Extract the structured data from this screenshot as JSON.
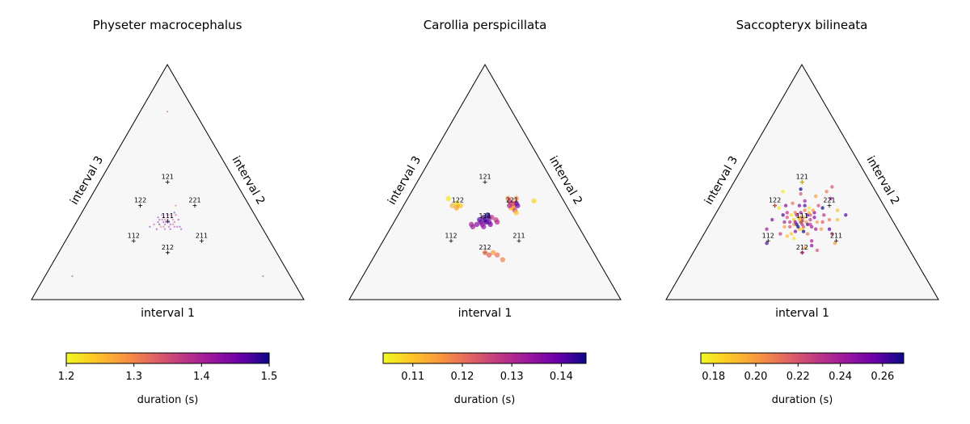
{
  "chart_data": [
    {
      "type": "scatter",
      "title": "Physeter macrocephalus",
      "axis_labels": {
        "bottom": "interval 1",
        "right": "interval 2",
        "left": "interval 3"
      },
      "colorbar": {
        "label": "duration (s)",
        "range": [
          1.2,
          1.5
        ],
        "ticks": [
          "1.2",
          "1.3",
          "1.4",
          "1.5"
        ]
      },
      "reference_patterns": [
        {
          "label": "111",
          "ratios": [
            1,
            1,
            1
          ]
        },
        {
          "label": "121",
          "ratios": [
            1,
            2,
            1
          ]
        },
        {
          "label": "122",
          "ratios": [
            1,
            2,
            2
          ]
        },
        {
          "label": "221",
          "ratios": [
            2,
            2,
            1
          ]
        },
        {
          "label": "112",
          "ratios": [
            1,
            1,
            2
          ]
        },
        {
          "label": "211",
          "ratios": [
            2,
            1,
            1
          ]
        },
        {
          "label": "212",
          "ratios": [
            2,
            1,
            2
          ]
        }
      ],
      "points": [
        [
          0.33,
          0.33,
          0.34,
          1.45
        ],
        [
          0.35,
          0.32,
          0.33,
          1.42
        ],
        [
          0.31,
          0.34,
          0.35,
          1.38
        ],
        [
          0.34,
          0.35,
          0.31,
          1.47
        ],
        [
          0.32,
          0.31,
          0.37,
          1.33
        ],
        [
          0.36,
          0.33,
          0.31,
          1.4
        ],
        [
          0.3,
          0.33,
          0.37,
          1.44
        ],
        [
          0.33,
          0.36,
          0.31,
          1.36
        ],
        [
          0.37,
          0.31,
          0.32,
          1.41
        ],
        [
          0.32,
          0.36,
          0.32,
          1.46
        ],
        [
          0.34,
          0.3,
          0.36,
          1.39
        ],
        [
          0.29,
          0.35,
          0.36,
          1.43
        ],
        [
          0.35,
          0.34,
          0.31,
          1.35
        ],
        [
          0.31,
          0.32,
          0.37,
          1.48
        ],
        [
          0.38,
          0.31,
          0.31,
          1.42
        ],
        [
          0.33,
          0.31,
          0.36,
          1.37
        ],
        [
          0.36,
          0.3,
          0.34,
          1.45
        ],
        [
          0.3,
          0.36,
          0.34,
          1.4
        ],
        [
          0.34,
          0.33,
          0.33,
          1.49
        ],
        [
          0.32,
          0.34,
          0.34,
          1.34
        ],
        [
          0.39,
          0.31,
          0.3,
          1.43
        ],
        [
          0.29,
          0.32,
          0.39,
          1.41
        ],
        [
          0.35,
          0.36,
          0.29,
          1.38
        ],
        [
          0.31,
          0.3,
          0.39,
          1.46
        ],
        [
          0.37,
          0.34,
          0.29,
          1.44
        ],
        [
          0.33,
          0.32,
          0.35,
          1.39
        ],
        [
          0.34,
          0.37,
          0.29,
          1.47
        ],
        [
          0.36,
          0.32,
          0.32,
          1.36
        ],
        [
          0.3,
          0.34,
          0.36,
          1.42
        ],
        [
          0.33,
          0.34,
          0.33,
          1.41
        ],
        [
          0.32,
          0.33,
          0.35,
          1.45
        ],
        [
          0.35,
          0.31,
          0.34,
          1.4
        ],
        [
          0.31,
          0.35,
          0.34,
          1.43
        ],
        [
          0.33,
          0.4,
          0.27,
          1.35
        ],
        [
          0.1,
          0.1,
          0.8,
          1.42
        ],
        [
          0.8,
          0.1,
          0.1,
          1.4
        ],
        [
          0.1,
          0.8,
          0.1,
          1.38
        ],
        [
          0.4,
          0.3,
          0.3,
          1.44
        ],
        [
          0.28,
          0.31,
          0.41,
          1.46
        ]
      ]
    },
    {
      "type": "scatter",
      "title": "Carollia perspicillata",
      "axis_labels": {
        "bottom": "interval 1",
        "right": "interval 2",
        "left": "interval 3"
      },
      "colorbar": {
        "label": "duration (s)",
        "range": [
          0.104,
          0.145
        ],
        "ticks": [
          "0.11",
          "0.12",
          "0.13",
          "0.14"
        ]
      },
      "reference_patterns": [
        {
          "label": "111",
          "ratios": [
            1,
            1,
            1
          ]
        },
        {
          "label": "121",
          "ratios": [
            1,
            2,
            1
          ]
        },
        {
          "label": "122",
          "ratios": [
            1,
            2,
            2
          ]
        },
        {
          "label": "221",
          "ratios": [
            2,
            2,
            1
          ]
        },
        {
          "label": "112",
          "ratios": [
            1,
            1,
            2
          ]
        },
        {
          "label": "211",
          "ratios": [
            2,
            1,
            1
          ]
        },
        {
          "label": "212",
          "ratios": [
            2,
            1,
            2
          ]
        }
      ],
      "points": [
        [
          0.2,
          0.4,
          0.4,
          0.105
        ],
        [
          0.19,
          0.41,
          0.4,
          0.108
        ],
        [
          0.21,
          0.4,
          0.39,
          0.11
        ],
        [
          0.18,
          0.4,
          0.42,
          0.112
        ],
        [
          0.2,
          0.39,
          0.41,
          0.115
        ],
        [
          0.15,
          0.43,
          0.42,
          0.106
        ],
        [
          0.4,
          0.4,
          0.2,
          0.115
        ],
        [
          0.41,
          0.39,
          0.2,
          0.118
        ],
        [
          0.39,
          0.41,
          0.2,
          0.12
        ],
        [
          0.4,
          0.41,
          0.19,
          0.122
        ],
        [
          0.42,
          0.38,
          0.2,
          0.125
        ],
        [
          0.38,
          0.42,
          0.2,
          0.128
        ],
        [
          0.4,
          0.39,
          0.21,
          0.112
        ],
        [
          0.39,
          0.4,
          0.21,
          0.13
        ],
        [
          0.41,
          0.41,
          0.18,
          0.135
        ],
        [
          0.37,
          0.43,
          0.2,
          0.118
        ],
        [
          0.43,
          0.37,
          0.2,
          0.11
        ],
        [
          0.4,
          0.43,
          0.17,
          0.117
        ],
        [
          0.47,
          0.42,
          0.11,
          0.108
        ],
        [
          0.42,
          0.4,
          0.18,
          0.14
        ],
        [
          0.33,
          0.34,
          0.33,
          0.14
        ],
        [
          0.32,
          0.33,
          0.35,
          0.138
        ],
        [
          0.34,
          0.33,
          0.33,
          0.142
        ],
        [
          0.31,
          0.32,
          0.37,
          0.136
        ],
        [
          0.33,
          0.32,
          0.35,
          0.135
        ],
        [
          0.35,
          0.33,
          0.32,
          0.139
        ],
        [
          0.3,
          0.31,
          0.39,
          0.133
        ],
        [
          0.32,
          0.35,
          0.33,
          0.141
        ],
        [
          0.34,
          0.35,
          0.31,
          0.143
        ],
        [
          0.36,
          0.32,
          0.32,
          0.137
        ],
        [
          0.29,
          0.32,
          0.39,
          0.132
        ],
        [
          0.33,
          0.36,
          0.31,
          0.144
        ],
        [
          0.35,
          0.35,
          0.3,
          0.128
        ],
        [
          0.37,
          0.34,
          0.29,
          0.126
        ],
        [
          0.31,
          0.34,
          0.35,
          0.14
        ],
        [
          0.38,
          0.33,
          0.29,
          0.13
        ],
        [
          0.34,
          0.31,
          0.35,
          0.134
        ],
        [
          0.4,
          0.2,
          0.4,
          0.118
        ],
        [
          0.42,
          0.19,
          0.39,
          0.122
        ],
        [
          0.43,
          0.2,
          0.37,
          0.115
        ],
        [
          0.45,
          0.19,
          0.36,
          0.12
        ],
        [
          0.48,
          0.17,
          0.35,
          0.118
        ]
      ]
    },
    {
      "type": "scatter",
      "title": "Saccopteryx bilineata",
      "axis_labels": {
        "bottom": "interval 1",
        "right": "interval 2",
        "left": "interval 3"
      },
      "colorbar": {
        "label": "duration (s)",
        "range": [
          0.174,
          0.27
        ],
        "ticks": [
          "0.18",
          "0.20",
          "0.22",
          "0.24",
          "0.26"
        ]
      },
      "reference_patterns": [
        {
          "label": "111",
          "ratios": [
            1,
            1,
            1
          ]
        },
        {
          "label": "121",
          "ratios": [
            1,
            2,
            1
          ]
        },
        {
          "label": "122",
          "ratios": [
            1,
            2,
            2
          ]
        },
        {
          "label": "221",
          "ratios": [
            2,
            2,
            1
          ]
        },
        {
          "label": "112",
          "ratios": [
            1,
            1,
            2
          ]
        },
        {
          "label": "211",
          "ratios": [
            2,
            1,
            1
          ]
        },
        {
          "label": "212",
          "ratios": [
            2,
            1,
            2
          ]
        }
      ],
      "points": [
        [
          0.33,
          0.34,
          0.33,
          0.22
        ],
        [
          0.31,
          0.35,
          0.34,
          0.18
        ],
        [
          0.35,
          0.33,
          0.32,
          0.2
        ],
        [
          0.3,
          0.36,
          0.34,
          0.24
        ],
        [
          0.36,
          0.32,
          0.32,
          0.26
        ],
        [
          0.32,
          0.38,
          0.3,
          0.21
        ],
        [
          0.34,
          0.3,
          0.36,
          0.19
        ],
        [
          0.29,
          0.33,
          0.38,
          0.23
        ],
        [
          0.37,
          0.35,
          0.28,
          0.25
        ],
        [
          0.33,
          0.31,
          0.36,
          0.27
        ],
        [
          0.31,
          0.32,
          0.37,
          0.2
        ],
        [
          0.35,
          0.36,
          0.29,
          0.22
        ],
        [
          0.28,
          0.36,
          0.36,
          0.18
        ],
        [
          0.38,
          0.31,
          0.31,
          0.24
        ],
        [
          0.32,
          0.35,
          0.33,
          0.21
        ],
        [
          0.34,
          0.36,
          0.3,
          0.26
        ],
        [
          0.3,
          0.34,
          0.36,
          0.19
        ],
        [
          0.36,
          0.34,
          0.3,
          0.23
        ],
        [
          0.33,
          0.29,
          0.38,
          0.25
        ],
        [
          0.27,
          0.35,
          0.38,
          0.22
        ],
        [
          0.39,
          0.33,
          0.28,
          0.2
        ],
        [
          0.31,
          0.37,
          0.32,
          0.24
        ],
        [
          0.35,
          0.3,
          0.35,
          0.18
        ],
        [
          0.33,
          0.33,
          0.34,
          0.26
        ],
        [
          0.29,
          0.37,
          0.34,
          0.21
        ],
        [
          0.37,
          0.32,
          0.31,
          0.23
        ],
        [
          0.32,
          0.32,
          0.36,
          0.27
        ],
        [
          0.34,
          0.37,
          0.29,
          0.19
        ],
        [
          0.3,
          0.31,
          0.39,
          0.22
        ],
        [
          0.36,
          0.37,
          0.27,
          0.25
        ],
        [
          0.28,
          0.31,
          0.41,
          0.2
        ],
        [
          0.4,
          0.3,
          0.3,
          0.24
        ],
        [
          0.33,
          0.39,
          0.28,
          0.18
        ],
        [
          0.26,
          0.37,
          0.37,
          0.23
        ],
        [
          0.38,
          0.28,
          0.34,
          0.21
        ],
        [
          0.31,
          0.4,
          0.29,
          0.26
        ],
        [
          0.35,
          0.38,
          0.27,
          0.2
        ],
        [
          0.27,
          0.33,
          0.4,
          0.24
        ],
        [
          0.41,
          0.33,
          0.26,
          0.22
        ],
        [
          0.32,
          0.28,
          0.4,
          0.19
        ],
        [
          0.29,
          0.4,
          0.31,
          0.25
        ],
        [
          0.36,
          0.29,
          0.35,
          0.27
        ],
        [
          0.26,
          0.41,
          0.33,
          0.21
        ],
        [
          0.4,
          0.36,
          0.24,
          0.23
        ],
        [
          0.34,
          0.26,
          0.4,
          0.18
        ],
        [
          0.25,
          0.36,
          0.39,
          0.26
        ],
        [
          0.42,
          0.3,
          0.28,
          0.2
        ],
        [
          0.3,
          0.42,
          0.28,
          0.24
        ],
        [
          0.36,
          0.4,
          0.24,
          0.22
        ],
        [
          0.31,
          0.27,
          0.42,
          0.19
        ],
        [
          0.24,
          0.4,
          0.36,
          0.25
        ],
        [
          0.43,
          0.34,
          0.23,
          0.21
        ],
        [
          0.28,
          0.28,
          0.44,
          0.23
        ],
        [
          0.38,
          0.39,
          0.23,
          0.27
        ],
        [
          0.22,
          0.39,
          0.39,
          0.18
        ],
        [
          0.45,
          0.3,
          0.25,
          0.26
        ],
        [
          0.33,
          0.44,
          0.23,
          0.2
        ],
        [
          0.41,
          0.25,
          0.34,
          0.24
        ],
        [
          0.27,
          0.45,
          0.28,
          0.22
        ],
        [
          0.44,
          0.38,
          0.18,
          0.19
        ],
        [
          0.22,
          0.34,
          0.44,
          0.25
        ],
        [
          0.36,
          0.46,
          0.18,
          0.21
        ],
        [
          0.47,
          0.28,
          0.25,
          0.23
        ],
        [
          0.26,
          0.47,
          0.27,
          0.27
        ],
        [
          0.4,
          0.22,
          0.38,
          0.2
        ],
        [
          0.2,
          0.46,
          0.34,
          0.18
        ],
        [
          0.39,
          0.43,
          0.18,
          0.24
        ],
        [
          0.45,
          0.21,
          0.34,
          0.22
        ],
        [
          0.25,
          0.24,
          0.51,
          0.26
        ],
        [
          0.46,
          0.34,
          0.2,
          0.19
        ],
        [
          0.2,
          0.4,
          0.4,
          0.21
        ],
        [
          0.4,
          0.2,
          0.4,
          0.23
        ],
        [
          0.25,
          0.5,
          0.25,
          0.18
        ],
        [
          0.42,
          0.23,
          0.35,
          0.25
        ],
        [
          0.5,
          0.24,
          0.26,
          0.2
        ],
        [
          0.37,
          0.48,
          0.15,
          0.22
        ],
        [
          0.22,
          0.3,
          0.48,
          0.24
        ],
        [
          0.48,
          0.36,
          0.16,
          0.26
        ],
        [
          0.33,
          0.33,
          0.34,
          0.21
        ],
        [
          0.32,
          0.34,
          0.34,
          0.19
        ],
        [
          0.34,
          0.32,
          0.34,
          0.23
        ],
        [
          0.33,
          0.35,
          0.32,
          0.2
        ],
        [
          0.35,
          0.31,
          0.34,
          0.22
        ],
        [
          0.31,
          0.33,
          0.36,
          0.25
        ]
      ]
    }
  ]
}
